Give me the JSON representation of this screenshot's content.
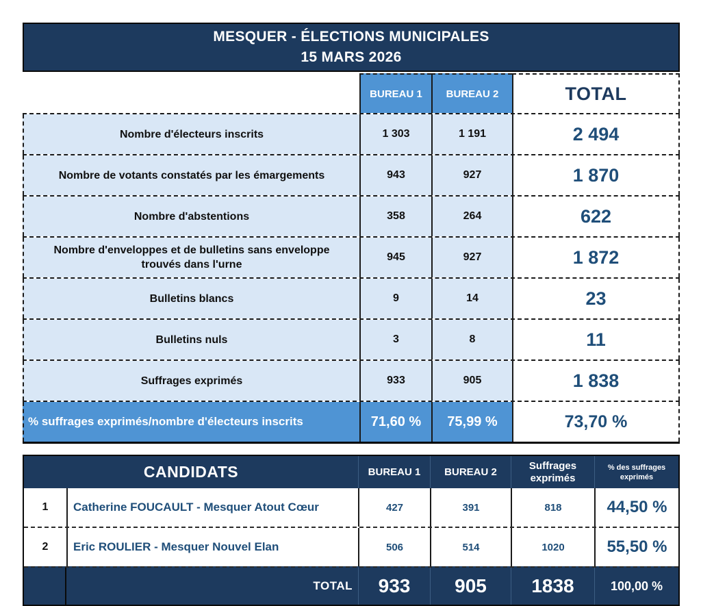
{
  "title": {
    "line1": "MESQUER - ÉLECTIONS MUNICIPALES",
    "line2": "15 MARS 2026"
  },
  "colors": {
    "header_navy": "#1d3a5e",
    "accent_blue": "#4f94d4",
    "row_light_blue": "#d9e7f6",
    "total_text_blue": "#1f4e79",
    "white": "#ffffff"
  },
  "results_table": {
    "columns": [
      "BUREAU 1",
      "BUREAU 2",
      "TOTAL"
    ],
    "rows": [
      {
        "label": "Nombre d'électeurs inscrits",
        "bureau1": "1 303",
        "bureau2": "1 191",
        "total": "2 494"
      },
      {
        "label": "Nombre de votants constatés par les émargements",
        "bureau1": "943",
        "bureau2": "927",
        "total": "1 870"
      },
      {
        "label": "Nombre d'abstentions",
        "bureau1": "358",
        "bureau2": "264",
        "total": "622"
      },
      {
        "label": "Nombre d'enveloppes et de bulletins sans enveloppe trouvés dans l'urne",
        "bureau1": "945",
        "bureau2": "927",
        "total": "1 872"
      },
      {
        "label": "Bulletins blancs",
        "bureau1": "9",
        "bureau2": "14",
        "total": "23"
      },
      {
        "label": "Bulletins nuls",
        "bureau1": "3",
        "bureau2": "8",
        "total": "11"
      },
      {
        "label": "Suffrages exprimés",
        "bureau1": "933",
        "bureau2": "905",
        "total": "1 838"
      }
    ],
    "percent_row": {
      "label": "% suffrages exprimés/nombre d'électeurs inscrits",
      "bureau1": "71,60 %",
      "bureau2": "75,99 %",
      "total": "73,70 %"
    }
  },
  "candidates_table": {
    "headers": {
      "candidates": "CANDIDATS",
      "bureau1": "BUREAU 1",
      "bureau2": "BUREAU 2",
      "suffrages": "Suffrages exprimés",
      "percent": "% des suffrages exprimés"
    },
    "rows": [
      {
        "rank": "1",
        "name": "Catherine FOUCAULT - Mesquer Atout Cœur",
        "bureau1": "427",
        "bureau2": "391",
        "suffrages": "818",
        "percent": "44,50 %"
      },
      {
        "rank": "2",
        "name": "Eric ROULIER - Mesquer Nouvel Elan",
        "bureau1": "506",
        "bureau2": "514",
        "suffrages": "1020",
        "percent": "55,50 %"
      }
    ],
    "total_row": {
      "label": "TOTAL",
      "bureau1": "933",
      "bureau2": "905",
      "suffrages": "1838",
      "percent": "100,00 %"
    }
  }
}
